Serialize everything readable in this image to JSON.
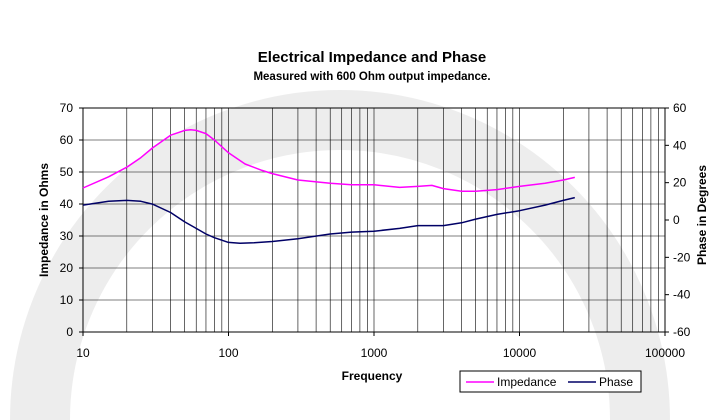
{
  "chart_data": {
    "type": "line",
    "title": "Electrical Impedance and Phase",
    "subtitle": "Measured with 600 Ohm output impedance.",
    "xlabel": "Frequency",
    "ylabel": "Impedance in Ohms",
    "y2label": "Phase in Degrees",
    "xscale": "log",
    "xlim": [
      10,
      100000
    ],
    "ylim": [
      0,
      70
    ],
    "y2lim": [
      -60,
      60
    ],
    "xticks": [
      "10",
      "100",
      "1000",
      "10000",
      "100000"
    ],
    "yticks": [
      "0",
      "10",
      "20",
      "30",
      "40",
      "50",
      "60",
      "70"
    ],
    "y2ticks": [
      "-60",
      "-40",
      "-20",
      "0",
      "20",
      "40",
      "60"
    ],
    "grid": true,
    "legend_position": "bottom-right",
    "series": [
      {
        "name": "Impedance",
        "axis": "left",
        "color": "#ff00ff",
        "x": [
          10,
          15,
          20,
          25,
          30,
          40,
          50,
          55,
          60,
          70,
          80,
          100,
          130,
          170,
          200,
          300,
          500,
          700,
          1000,
          1500,
          2000,
          2500,
          3000,
          4000,
          5000,
          7000,
          10000,
          15000,
          20000,
          24000
        ],
        "y": [
          45,
          48.5,
          51.5,
          54.5,
          57.5,
          61.5,
          63,
          63.2,
          63,
          62,
          60,
          56,
          52.5,
          50.5,
          49.5,
          47.5,
          46.5,
          46,
          46,
          45.2,
          45.5,
          45.8,
          44.8,
          44,
          44,
          44.5,
          45.5,
          46.5,
          47.5,
          48.3
        ]
      },
      {
        "name": "Phase",
        "axis": "right",
        "color": "#000066",
        "x": [
          10,
          15,
          20,
          25,
          30,
          40,
          50,
          60,
          70,
          80,
          100,
          120,
          150,
          200,
          300,
          500,
          700,
          1000,
          1500,
          2000,
          2500,
          3000,
          4000,
          5000,
          7000,
          10000,
          15000,
          20000,
          24000
        ],
        "y": [
          8,
          10,
          10.5,
          10,
          8.5,
          4,
          -1,
          -4.5,
          -7.5,
          -9.5,
          -12,
          -12.5,
          -12.2,
          -11.5,
          -10,
          -7.5,
          -6.5,
          -6,
          -4.5,
          -3,
          -3,
          -3,
          -1.5,
          0.5,
          3,
          5,
          8,
          10.5,
          12
        ]
      }
    ]
  }
}
